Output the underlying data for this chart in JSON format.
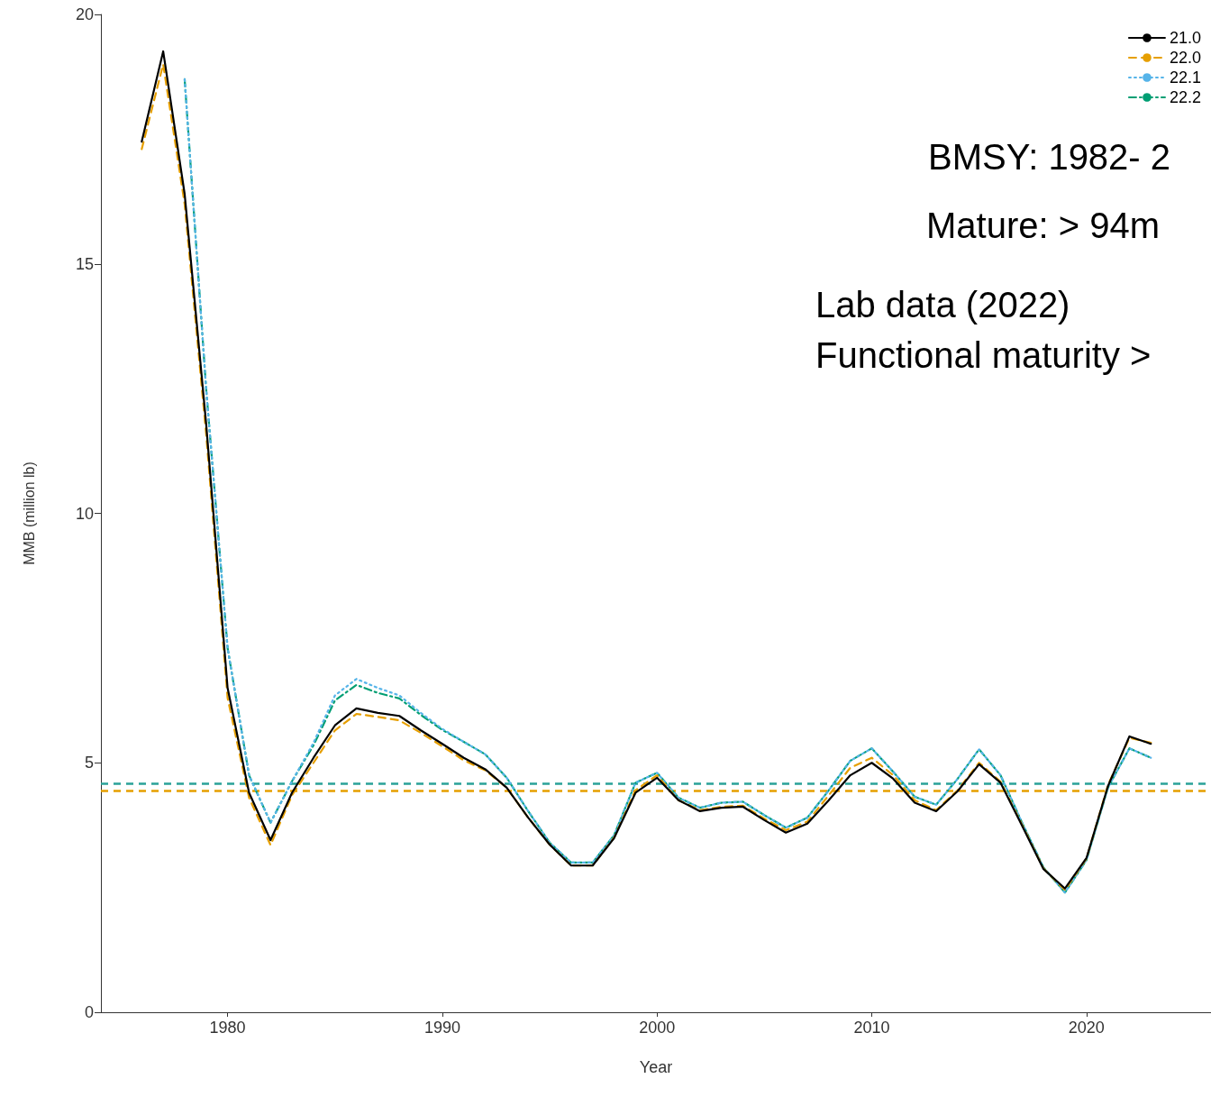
{
  "chart_data": {
    "type": "line",
    "xlabel": "Year",
    "ylabel": "MMB (million lb)",
    "x": [
      1976,
      1977,
      1978,
      1979,
      1980,
      1981,
      1982,
      1983,
      1984,
      1985,
      1986,
      1987,
      1988,
      1989,
      1990,
      1991,
      1992,
      1993,
      1994,
      1995,
      1996,
      1997,
      1998,
      1999,
      2000,
      2001,
      2002,
      2003,
      2004,
      2005,
      2006,
      2007,
      2008,
      2009,
      2010,
      2011,
      2012,
      2013,
      2014,
      2015,
      2016,
      2017,
      2018,
      2019,
      2020,
      2021,
      2022,
      2023
    ],
    "series": [
      {
        "name": "21.0",
        "color": "#000000",
        "line_style": "solid",
        "values": [
          17.45,
          19.26,
          16.4,
          11.8,
          6.5,
          4.4,
          3.45,
          4.4,
          5.1,
          5.75,
          6.09,
          6.0,
          5.94,
          5.65,
          5.38,
          5.1,
          4.87,
          4.5,
          3.9,
          3.36,
          2.94,
          2.94,
          3.49,
          4.4,
          4.7,
          4.25,
          4.03,
          4.1,
          4.12,
          3.85,
          3.6,
          3.78,
          4.25,
          4.75,
          5.0,
          4.68,
          4.2,
          4.03,
          4.43,
          4.97,
          4.6,
          3.74,
          2.87,
          2.48,
          3.09,
          4.53,
          5.53,
          5.38
        ]
      },
      {
        "name": "22.0",
        "color": "#e69f00",
        "line_style": "dashed",
        "values": [
          17.3,
          19.0,
          16.2,
          11.6,
          6.3,
          4.3,
          3.35,
          4.35,
          5.0,
          5.65,
          5.98,
          5.92,
          5.85,
          5.6,
          5.33,
          5.05,
          4.85,
          4.5,
          3.9,
          3.36,
          2.94,
          2.94,
          3.5,
          4.45,
          4.75,
          4.25,
          4.05,
          4.12,
          4.14,
          3.88,
          3.65,
          3.82,
          4.35,
          4.9,
          5.1,
          4.75,
          4.25,
          4.05,
          4.45,
          5.0,
          4.62,
          3.76,
          2.88,
          2.45,
          3.08,
          4.55,
          5.5,
          5.4
        ]
      },
      {
        "name": "22.1",
        "color": "#56b4e9",
        "line_style": "dotted",
        "values": [
          null,
          null,
          18.7,
          12.5,
          7.3,
          4.75,
          3.8,
          4.63,
          5.4,
          6.35,
          6.68,
          6.5,
          6.35,
          6.0,
          5.68,
          5.42,
          5.17,
          4.7,
          4.03,
          3.4,
          3.0,
          3.0,
          3.55,
          4.6,
          4.8,
          4.3,
          4.1,
          4.2,
          4.22,
          3.95,
          3.7,
          3.9,
          4.45,
          5.04,
          5.29,
          4.82,
          4.32,
          4.16,
          4.68,
          5.27,
          4.75,
          3.8,
          2.9,
          2.4,
          3.05,
          4.5,
          5.29,
          5.1
        ]
      },
      {
        "name": "22.2",
        "color": "#009e73",
        "line_style": "dashdot",
        "values": [
          null,
          null,
          18.7,
          12.5,
          7.3,
          4.75,
          3.8,
          4.63,
          5.35,
          6.25,
          6.56,
          6.4,
          6.29,
          5.96,
          5.66,
          5.42,
          5.17,
          4.7,
          4.03,
          3.4,
          3.0,
          3.0,
          3.55,
          4.6,
          4.8,
          4.3,
          4.1,
          4.2,
          4.22,
          3.95,
          3.7,
          3.9,
          4.45,
          5.04,
          5.29,
          4.82,
          4.32,
          4.16,
          4.68,
          5.27,
          4.75,
          3.8,
          2.9,
          2.4,
          3.05,
          4.5,
          5.29,
          5.1
        ]
      }
    ],
    "xlim": [
      1974.1,
      2025.8
    ],
    "xticks": [
      1980,
      1990,
      2000,
      2010,
      2020
    ],
    "ylim": [
      0,
      20
    ],
    "yticks": [
      0,
      5,
      10,
      15,
      20
    ],
    "ref_lines": [
      {
        "axis": "y",
        "value": 4.44,
        "color": "#e69f00",
        "line_style": "dashed"
      },
      {
        "axis": "y",
        "value": 4.59,
        "color": "#2aa198",
        "line_style": "dashed"
      }
    ],
    "annotations": [
      "BMSY: 1982- 2",
      "Mature: > 94m",
      "Lab data (2022)",
      "Functional maturity >"
    ],
    "grid": false,
    "legend": "top right",
    "marker": "none"
  }
}
